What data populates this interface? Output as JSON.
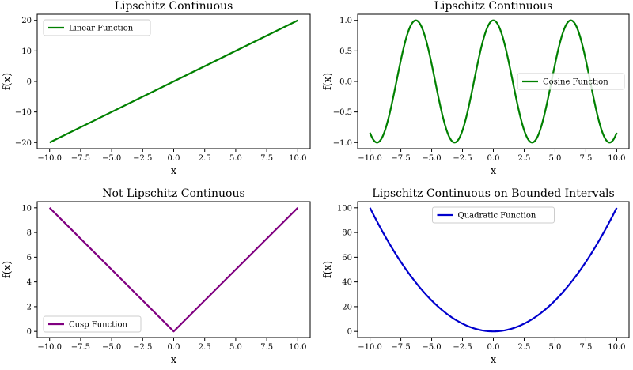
{
  "chart_data": [
    {
      "type": "line",
      "title": "Lipschitz Continuous",
      "xlabel": "x",
      "ylabel": "f(x)",
      "xlim": [
        -11.0,
        11.0
      ],
      "ylim": [
        -22.0,
        22.0
      ],
      "xticks": [
        -10.0,
        -7.5,
        -5.0,
        -2.5,
        0.0,
        2.5,
        5.0,
        7.5,
        10.0
      ],
      "xtick_labels": [
        "−10.0",
        "−7.5",
        "−5.0",
        "−2.5",
        "0.0",
        "2.5",
        "5.0",
        "7.5",
        "10.0"
      ],
      "yticks": [
        -20,
        -10,
        0,
        10,
        20
      ],
      "ytick_labels": [
        "−20",
        "−10",
        "0",
        "10",
        "20"
      ],
      "grid": false,
      "legend": "top-left",
      "series": [
        {
          "name": "Linear Function",
          "function": "2x",
          "color": "#008000",
          "x": [
            -10,
            10
          ],
          "y": [
            -20,
            20
          ]
        }
      ]
    },
    {
      "type": "line",
      "title": "Lipschitz Continuous",
      "xlabel": "x",
      "ylabel": "f(x)",
      "xlim": [
        -11.0,
        11.0
      ],
      "ylim": [
        -1.1,
        1.1
      ],
      "xticks": [
        -10.0,
        -7.5,
        -5.0,
        -2.5,
        0.0,
        2.5,
        5.0,
        7.5,
        10.0
      ],
      "xtick_labels": [
        "−10.0",
        "−7.5",
        "−5.0",
        "−2.5",
        "0.0",
        "2.5",
        "5.0",
        "7.5",
        "10.0"
      ],
      "yticks": [
        -1.0,
        -0.5,
        0.0,
        0.5,
        1.0
      ],
      "ytick_labels": [
        "−1.0",
        "−0.5",
        "0.0",
        "0.5",
        "1.0"
      ],
      "grid": false,
      "legend": "center-right",
      "series": [
        {
          "name": "Cosine Function",
          "function": "cos(x)",
          "color": "#008000",
          "x_range": [
            -10,
            10
          ]
        }
      ]
    },
    {
      "type": "line",
      "title": "Not Lipschitz Continuous",
      "xlabel": "x",
      "ylabel": "f(x)",
      "xlim": [
        -11.0,
        11.0
      ],
      "ylim": [
        -0.5,
        10.5
      ],
      "xticks": [
        -10.0,
        -7.5,
        -5.0,
        -2.5,
        0.0,
        2.5,
        5.0,
        7.5,
        10.0
      ],
      "xtick_labels": [
        "−10.0",
        "−7.5",
        "−5.0",
        "−2.5",
        "0.0",
        "2.5",
        "5.0",
        "7.5",
        "10.0"
      ],
      "yticks": [
        0,
        2,
        4,
        6,
        8,
        10
      ],
      "ytick_labels": [
        "0",
        "2",
        "4",
        "6",
        "8",
        "10"
      ],
      "grid": false,
      "legend": "bottom-left",
      "series": [
        {
          "name": "Cusp Function",
          "function": "|x|",
          "color": "#800080",
          "x": [
            -10,
            0,
            10
          ],
          "y": [
            10,
            0,
            10
          ]
        }
      ]
    },
    {
      "type": "line",
      "title": "Lipschitz Continuous on Bounded Intervals",
      "xlabel": "x",
      "ylabel": "f(x)",
      "xlim": [
        -11.0,
        11.0
      ],
      "ylim": [
        -5.0,
        105.0
      ],
      "xticks": [
        -10.0,
        -7.5,
        -5.0,
        -2.5,
        0.0,
        2.5,
        5.0,
        7.5,
        10.0
      ],
      "xtick_labels": [
        "−10.0",
        "−7.5",
        "−5.0",
        "−2.5",
        "0.0",
        "2.5",
        "5.0",
        "7.5",
        "10.0"
      ],
      "yticks": [
        0,
        20,
        40,
        60,
        80,
        100
      ],
      "ytick_labels": [
        "0",
        "20",
        "40",
        "60",
        "80",
        "100"
      ],
      "grid": false,
      "legend": "top-center",
      "series": [
        {
          "name": "Quadratic Function",
          "function": "x^2",
          "color": "#0000cd",
          "x_range": [
            -10,
            10
          ]
        }
      ]
    }
  ]
}
